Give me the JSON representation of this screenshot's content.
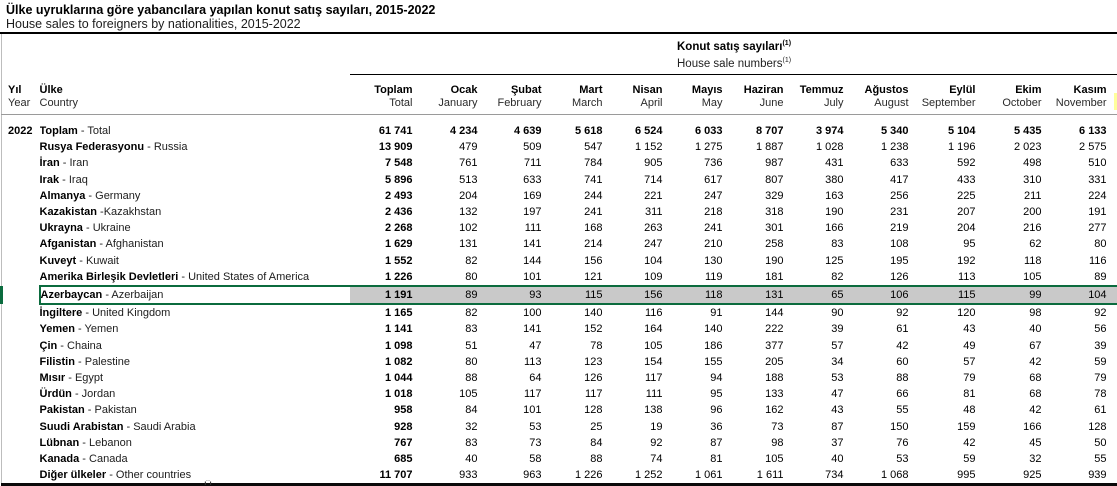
{
  "header": {
    "title_tr": "Ülke uyruklarına göre yabancılara yapılan konut satış sayıları, 2015-2022",
    "title_en": "House sales to foreigners by nationalities, 2015-2022"
  },
  "table": {
    "group_header": {
      "tr": "Konut satış sayıları",
      "en": "House sale numbers",
      "footnote_marker": "(1)"
    },
    "year_col": {
      "tr": "Yıl",
      "en": "Year"
    },
    "country_col": {
      "tr": "Ülke",
      "en": "Country"
    },
    "columns": [
      {
        "tr": "Toplam",
        "en": "Total"
      },
      {
        "tr": "Ocak",
        "en": "January"
      },
      {
        "tr": "Şubat",
        "en": "February"
      },
      {
        "tr": "Mart",
        "en": "March"
      },
      {
        "tr": "Nisan",
        "en": "April"
      },
      {
        "tr": "Mayıs",
        "en": "May"
      },
      {
        "tr": "Haziran",
        "en": "June"
      },
      {
        "tr": "Temmuz",
        "en": "July"
      },
      {
        "tr": "Ağustos",
        "en": "August"
      },
      {
        "tr": "Eylül",
        "en": "September"
      },
      {
        "tr": "Ekim",
        "en": "October"
      },
      {
        "tr": "Kasım",
        "en": "November"
      }
    ],
    "year": "2022",
    "rows": [
      {
        "tr": "Toplam",
        "sep": " - ",
        "en": "Total",
        "bold": true,
        "values": [
          61741,
          4234,
          4639,
          5618,
          6524,
          6033,
          8707,
          3974,
          5340,
          5104,
          5435,
          6133
        ]
      },
      {
        "tr": "Rusya Federasyonu",
        "sep": " - ",
        "en": "Russia",
        "values": [
          13909,
          479,
          509,
          547,
          1152,
          1275,
          1887,
          1028,
          1238,
          1196,
          2023,
          2575
        ]
      },
      {
        "tr": "İran",
        "sep": " - ",
        "en": "Iran",
        "values": [
          7548,
          761,
          711,
          784,
          905,
          736,
          987,
          431,
          633,
          592,
          498,
          510
        ]
      },
      {
        "tr": "Irak",
        "sep": " - ",
        "en": "Iraq",
        "values": [
          5896,
          513,
          633,
          741,
          714,
          617,
          807,
          380,
          417,
          433,
          310,
          331
        ]
      },
      {
        "tr": "Almanya",
        "sep": " - ",
        "en": "Germany",
        "values": [
          2493,
          204,
          169,
          244,
          221,
          247,
          329,
          163,
          256,
          225,
          211,
          224
        ]
      },
      {
        "tr": "Kazakistan",
        "sep": " -",
        "en": "Kazakhstan",
        "values": [
          2436,
          132,
          197,
          241,
          311,
          218,
          318,
          190,
          231,
          207,
          200,
          191
        ]
      },
      {
        "tr": "Ukrayna",
        "sep": " - ",
        "en": "Ukraine",
        "values": [
          2268,
          102,
          111,
          168,
          263,
          241,
          301,
          166,
          219,
          204,
          216,
          277
        ]
      },
      {
        "tr": "Afganistan",
        "sep": " - ",
        "en": "Afghanistan",
        "values": [
          1629,
          131,
          141,
          214,
          247,
          210,
          258,
          83,
          108,
          95,
          62,
          80
        ]
      },
      {
        "tr": "Kuveyt",
        "sep": " - ",
        "en": "Kuwait",
        "values": [
          1552,
          82,
          144,
          156,
          104,
          130,
          190,
          125,
          195,
          192,
          118,
          116
        ]
      },
      {
        "tr": "Amerika Birleşik Devletleri",
        "sep": " - ",
        "en": "United States of America",
        "values": [
          1226,
          80,
          101,
          121,
          109,
          119,
          181,
          82,
          126,
          113,
          105,
          89
        ]
      },
      {
        "tr": "Azerbaycan",
        "sep": " - ",
        "en": "Azerbaijan",
        "highlight": true,
        "values": [
          1191,
          89,
          93,
          115,
          156,
          118,
          131,
          65,
          106,
          115,
          99,
          104
        ]
      },
      {
        "tr": "İngiltere",
        "sep": " - ",
        "en": "United Kingdom",
        "values": [
          1165,
          82,
          100,
          140,
          116,
          91,
          144,
          90,
          92,
          120,
          98,
          92
        ]
      },
      {
        "tr": "Yemen",
        "sep": " - ",
        "en": "Yemen",
        "values": [
          1141,
          83,
          141,
          152,
          164,
          140,
          222,
          39,
          61,
          43,
          40,
          56
        ]
      },
      {
        "tr": "Çin",
        "sep": " - ",
        "en": "Chaina",
        "values": [
          1098,
          51,
          47,
          78,
          105,
          186,
          377,
          57,
          42,
          49,
          67,
          39
        ]
      },
      {
        "tr": "Filistin",
        "sep": " - ",
        "en": "Palestine",
        "values": [
          1082,
          80,
          113,
          123,
          154,
          155,
          205,
          34,
          60,
          57,
          42,
          59
        ]
      },
      {
        "tr": "Mısır",
        "sep": " - ",
        "en": "Egypt",
        "values": [
          1044,
          88,
          64,
          126,
          117,
          94,
          188,
          53,
          88,
          79,
          68,
          79
        ]
      },
      {
        "tr": "Ürdün",
        "sep": " - ",
        "en": "Jordan",
        "values": [
          1018,
          105,
          117,
          117,
          111,
          95,
          133,
          47,
          66,
          81,
          68,
          78
        ]
      },
      {
        "tr": "Pakistan",
        "sep": " - ",
        "en": "Pakistan",
        "values": [
          958,
          84,
          101,
          128,
          138,
          96,
          162,
          43,
          55,
          48,
          42,
          61
        ]
      },
      {
        "tr": "Suudi Arabistan",
        "sep": " - ",
        "en": "Saudi Arabia",
        "values": [
          928,
          32,
          53,
          25,
          19,
          36,
          73,
          87,
          150,
          159,
          166,
          128
        ]
      },
      {
        "tr": "Lübnan",
        "sep": " - ",
        "en": "Lebanon",
        "values": [
          767,
          83,
          73,
          84,
          92,
          87,
          98,
          37,
          76,
          42,
          45,
          50
        ]
      },
      {
        "tr": "Kanada",
        "sep": " - ",
        "en": "Canada",
        "values": [
          685,
          40,
          58,
          88,
          74,
          81,
          105,
          40,
          53,
          59,
          32,
          55
        ]
      },
      {
        "tr": "Diğer ülkeler",
        "sep": " - ",
        "en": "Other countries",
        "values": [
          11707,
          933,
          963,
          1226,
          1252,
          1061,
          1611,
          734,
          1068,
          995,
          925,
          939
        ]
      }
    ],
    "highlight_color": "#0b6b3e",
    "highlight_fill": "#c9c9c9",
    "next_column_sliver_color": "#ffff9c",
    "footnote_fragment": "Ü"
  }
}
